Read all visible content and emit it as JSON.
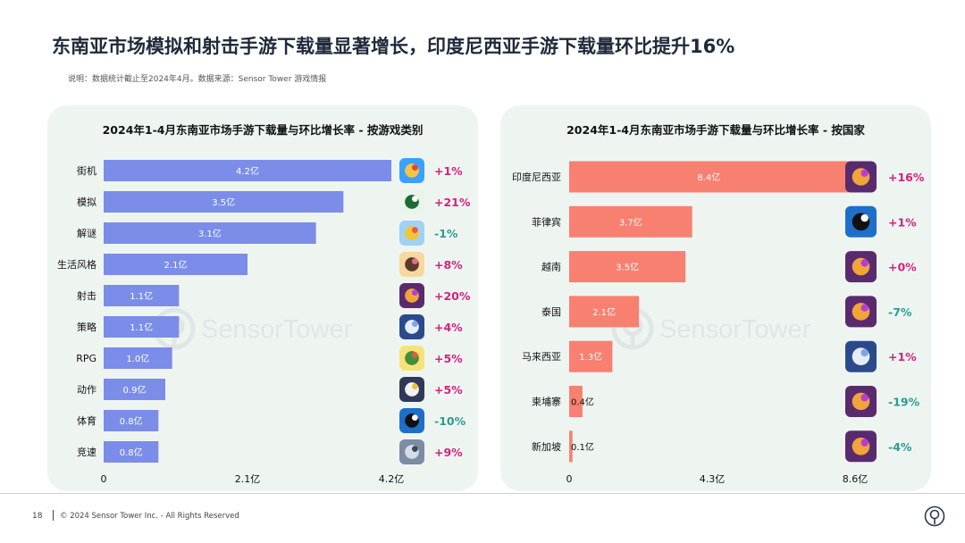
{
  "title": "东南亚市场模拟和射击手游下载量显著增长，印度尼西亚手游下载量环比提升16%",
  "note": "说明：数据统计截止至2024年4月。数据来源：Sensor Tower 游戏情报",
  "watermark": "SensorTower",
  "footer": {
    "page": "18",
    "copyright": "© 2024 Sensor Tower Inc. - All Rights Reserved"
  },
  "colors": {
    "left_bar": "#7b8de8",
    "right_bar": "#f88070",
    "pos": "#d6217f",
    "neg": "#2a9d8f",
    "panel_bg": "#eef5f1"
  },
  "chart_data": [
    {
      "type": "bar",
      "orientation": "horizontal",
      "title": "2024年1-4月东南亚市场手游下载量与环比增长率 - 按游戏类别",
      "categories": [
        "街机",
        "模拟",
        "解谜",
        "生活风格",
        "射击",
        "策略",
        "RPG",
        "动作",
        "体育",
        "竞速"
      ],
      "values": [
        4.2,
        3.5,
        3.1,
        2.1,
        1.1,
        1.1,
        1.0,
        0.9,
        0.8,
        0.8
      ],
      "value_labels": [
        "4.2亿",
        "3.5亿",
        "3.1亿",
        "2.1亿",
        "1.1亿",
        "1.1亿",
        "1.0亿",
        "0.9亿",
        "0.8亿",
        "0.8亿"
      ],
      "growth": [
        "+1%",
        "+21%",
        "-1%",
        "+8%",
        "+20%",
        "+4%",
        "+5%",
        "+5%",
        "-10%",
        "+9%"
      ],
      "growth_sign": [
        1,
        1,
        -1,
        1,
        1,
        1,
        1,
        1,
        -1,
        1
      ],
      "icons": [
        "match-puzzle-game-icon",
        "soccer-manager-game-icon",
        "bird-puzzle-game-icon",
        "lifestyle-game-icon",
        "shooter-game-icon",
        "strategy-hero-game-icon",
        "rpg-game-icon",
        "action-hero-game-icon",
        "billiards-game-icon",
        "racing-game-icon"
      ],
      "xlim": [
        0,
        4.2
      ],
      "xticks": [
        "0",
        "2.1亿",
        "4.2亿"
      ],
      "xtick_values": [
        0,
        2.1,
        4.2
      ]
    },
    {
      "type": "bar",
      "orientation": "horizontal",
      "title": "2024年1-4月东南亚市场手游下载量与环比增长率 - 按国家",
      "categories": [
        "印度尼西亚",
        "菲律宾",
        "越南",
        "泰国",
        "马来西亚",
        "柬埔寨",
        "新加坡"
      ],
      "values": [
        8.4,
        3.7,
        3.5,
        2.1,
        1.3,
        0.4,
        0.1
      ],
      "value_labels": [
        "8.4亿",
        "3.7亿",
        "3.5亿",
        "2.1亿",
        "1.3亿",
        "0.4亿",
        "0.1亿"
      ],
      "growth": [
        "+16%",
        "+1%",
        "+0%",
        "-7%",
        "+1%",
        "-19%",
        "-4%"
      ],
      "growth_sign": [
        1,
        1,
        1,
        -1,
        1,
        -1,
        -1
      ],
      "icons": [
        "shooter-game-icon",
        "billiards-game-icon",
        "shooter-game-icon",
        "shooter-game-icon",
        "strategy-hero-game-icon",
        "shooter-game-icon",
        "shooter-game-icon"
      ],
      "xlim": [
        0,
        8.6
      ],
      "xticks": [
        "0",
        "4.3亿",
        "8.6亿"
      ],
      "xtick_values": [
        0,
        4.3,
        8.6
      ]
    }
  ]
}
